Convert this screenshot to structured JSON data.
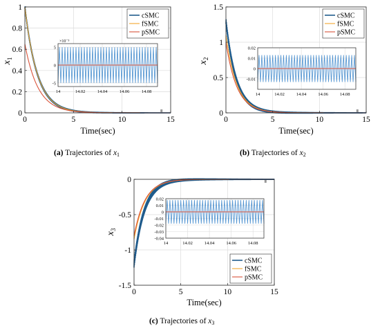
{
  "colors": {
    "cSMC": "#1f5b8c",
    "fSMC": "#f2a72d",
    "pSMC": "#d9533a",
    "cSMC_inset": "#4a8fcf",
    "grid": "#dcdcdc",
    "axis": "#262626"
  },
  "captions": [
    {
      "tag": "(a)",
      "text": "Trajectories of",
      "var": "x",
      "sub": "1"
    },
    {
      "tag": "(b)",
      "text": "Trajectories of",
      "var": "x",
      "sub": "2"
    },
    {
      "tag": "(c)",
      "text": "Trajectories of",
      "var": "x",
      "sub": "3"
    }
  ],
  "chart_data": [
    {
      "type": "line",
      "panel": "a",
      "ylabel": "x",
      "ylabel_sub": "1",
      "xlabel": "Time(sec)",
      "xlim": [
        0,
        15
      ],
      "ylim": [
        0,
        1
      ],
      "xticks": [
        "0",
        "5",
        "10",
        "15"
      ],
      "yticks": [
        "0",
        "0.2",
        "0.4",
        "0.6",
        "0.8",
        "1"
      ],
      "grid": true,
      "legend": [
        "cSMC",
        "fSMC",
        "pSMC"
      ],
      "legend_position": "top-right",
      "series": [
        {
          "name": "cSMC",
          "initial": 1.0,
          "decay": 0.78,
          "chatter": 0.015
        },
        {
          "name": "fSMC",
          "initial": 1.0,
          "decay": 0.78,
          "chatter": 0.0
        },
        {
          "name": "pSMC",
          "initial": 0.65,
          "decay": 0.74,
          "chatter": 0.0
        }
      ],
      "inset": {
        "xlim": [
          14,
          14.09
        ],
        "ylim": [
          -0.006,
          0.006
        ],
        "xticks": [
          "14",
          "14.02",
          "14.04",
          "14.06",
          "14.08"
        ],
        "yticks": [
          "-5",
          "0",
          "5"
        ],
        "exponent": "×10⁻³",
        "chatter_amplitude": 0.005,
        "chatter_cycles": 36
      }
    },
    {
      "type": "line",
      "panel": "b",
      "ylabel": "x",
      "ylabel_sub": "2",
      "xlabel": "Time(sec)",
      "xlim": [
        0,
        15
      ],
      "ylim": [
        0,
        1.5
      ],
      "xticks": [
        "0",
        "5",
        "10",
        "15"
      ],
      "yticks": [
        "0",
        "0.5",
        "1",
        "1.5"
      ],
      "grid": true,
      "legend": [
        "cSMC",
        "fSMC",
        "pSMC"
      ],
      "legend_position": "top-right",
      "series": [
        {
          "name": "cSMC",
          "initial": 1.3,
          "decay": 0.9,
          "chatter": 0.04
        },
        {
          "name": "fSMC",
          "initial": 1.1,
          "decay": 0.85,
          "chatter": 0.0
        },
        {
          "name": "pSMC",
          "initial": 1.0,
          "decay": 0.85,
          "chatter": 0.0
        }
      ],
      "inset": {
        "xlim": [
          14,
          14.09
        ],
        "ylim": [
          -0.02,
          0.02
        ],
        "xticks": [
          "14",
          "14.02",
          "14.04",
          "14.06",
          "14.08"
        ],
        "yticks": [
          "-0.01",
          "0",
          "0.01",
          "0.02"
        ],
        "exponent": "",
        "chatter_amplitude": 0.013,
        "chatter_cycles": 36
      }
    },
    {
      "type": "line",
      "panel": "c",
      "ylabel": "x",
      "ylabel_sub": "3",
      "xlabel": "Time(sec)",
      "xlim": [
        0,
        15
      ],
      "ylim": [
        -1.5,
        0
      ],
      "xticks": [
        "0",
        "5",
        "10",
        "15"
      ],
      "yticks": [
        "-1.5",
        "-1",
        "-0.5",
        "0"
      ],
      "grid": true,
      "legend": [
        "cSMC",
        "fSMC",
        "pSMC"
      ],
      "legend_position": "bottom-right",
      "series": [
        {
          "name": "cSMC",
          "initial": -1.2,
          "decay": 0.9,
          "chatter": 0.05
        },
        {
          "name": "fSMC",
          "initial": -0.85,
          "decay": 0.85,
          "chatter": 0.0
        },
        {
          "name": "pSMC",
          "initial": -0.8,
          "decay": 0.85,
          "chatter": 0.0
        }
      ],
      "inset": {
        "xlim": [
          14,
          14.09
        ],
        "ylim": [
          -0.04,
          0.02
        ],
        "xticks": [
          "14",
          "14.02",
          "14.04",
          "14.06",
          "14.08"
        ],
        "yticks": [
          "-0.04",
          "-0.03",
          "-0.02",
          "-0.01",
          "0",
          "0.01",
          "0.02"
        ],
        "exponent": "",
        "chatter_amplitude": 0.018,
        "chatter_cycles": 36
      }
    }
  ]
}
